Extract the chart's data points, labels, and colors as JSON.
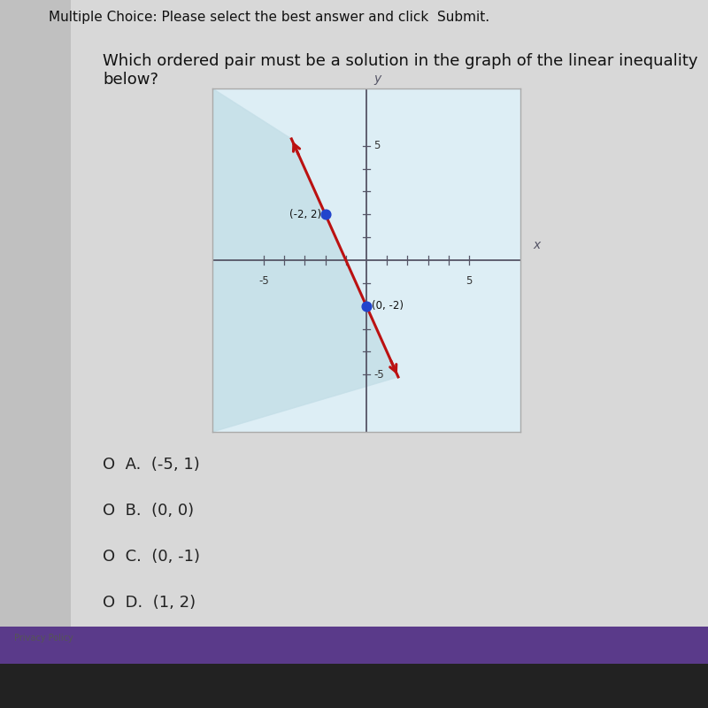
{
  "title_top": "Multiple Choice: Please select the best answer and click  Submit.",
  "question": "Which ordered pair must be a solution in the graph of the linear inequality\nbelow?",
  "page_bg": "#d8d8d8",
  "graph_bg": "#ddeef5",
  "graph_border": "#aaaaaa",
  "graph_xlim": [
    -7.5,
    7.5
  ],
  "graph_ylim": [
    -7.5,
    7.5
  ],
  "axis_color": "#555566",
  "line_color": "#bb1111",
  "line_width": 2.2,
  "point1": [
    -2,
    2
  ],
  "point1_label": "(-2, 2)",
  "point2": [
    0,
    -2
  ],
  "point2_label": "(0, -2)",
  "point_color": "#2244cc",
  "point_size": 60,
  "shade_color": "#c5dfe8",
  "shade_alpha": 0.85,
  "choices": [
    "O  A.  (-5, 1)",
    "O  B.  (0, 0)",
    "O  C.  (0, -1)",
    "O  D.  (1, 2)"
  ],
  "choices_fontsize": 13,
  "question_fontsize": 13,
  "title_fontsize": 11,
  "bg_left": "#c8c8c8",
  "bg_right": "#d0d0d0",
  "bottom_bar_color": "#5a3a8a",
  "bottom_bar_height": 0.065,
  "laptop_color": "#222222"
}
